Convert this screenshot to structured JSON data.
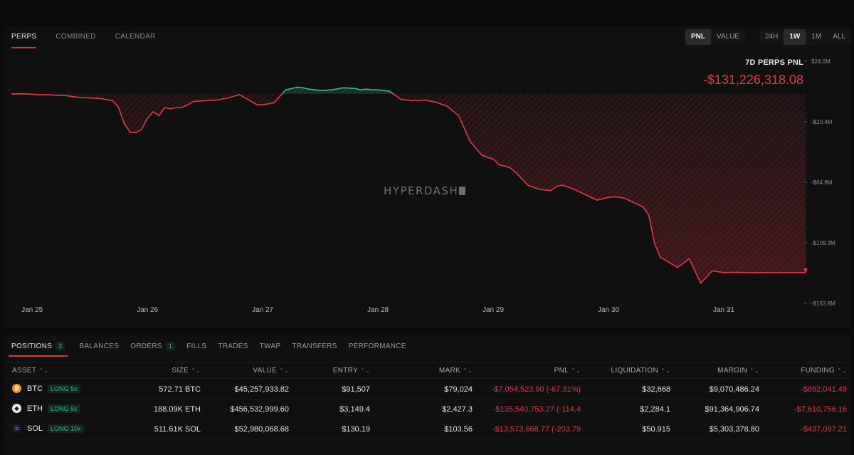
{
  "chart_tabs": [
    {
      "label": "PERPS",
      "active": true
    },
    {
      "label": "COMBINED",
      "active": false
    },
    {
      "label": "CALENDAR",
      "active": false
    }
  ],
  "metric_toggle": [
    {
      "label": "PNL",
      "active": true
    },
    {
      "label": "VALUE",
      "active": false
    }
  ],
  "range_toggle": [
    {
      "label": "24H",
      "active": false
    },
    {
      "label": "1W",
      "active": true
    },
    {
      "label": "1M",
      "active": false
    },
    {
      "label": "ALL",
      "active": false
    }
  ],
  "pnl_summary": {
    "label": "7D PERPS PNL",
    "value": "-$131,226,318.08"
  },
  "watermark": "HYPERDASH",
  "colors": {
    "positive": "#3fb98a",
    "negative": "#e0394a",
    "accent": "#d23a3a"
  },
  "chart_data": {
    "type": "area",
    "baseline": 0,
    "ylim": [
      -153.8,
      24.0
    ],
    "y_unit": "M USD",
    "y_ticks": [
      {
        "value": 24.0,
        "label": "$24.0M"
      },
      {
        "value": -20.4,
        "label": "-$20.4M"
      },
      {
        "value": -64.9,
        "label": "-$64.9M"
      },
      {
        "value": -109.3,
        "label": "-$109.3M"
      },
      {
        "value": -153.8,
        "label": "-$153.8M"
      }
    ],
    "x_ticks": [
      {
        "value": 0,
        "label": "Jan 25"
      },
      {
        "value": 1,
        "label": "Jan 26"
      },
      {
        "value": 2,
        "label": "Jan 27"
      },
      {
        "value": 3,
        "label": "Jan 28"
      },
      {
        "value": 4,
        "label": "Jan 29"
      },
      {
        "value": 5,
        "label": "Jan 30"
      },
      {
        "value": 6,
        "label": "Jan 31"
      }
    ],
    "xlim": [
      -0.18,
      6.71
    ],
    "series": [
      {
        "x": [
          -0.18,
          -0.05,
          0.05,
          0.15,
          0.3,
          0.4,
          0.5,
          0.6,
          0.7,
          0.75,
          0.8,
          0.85,
          0.9,
          0.95,
          1.0,
          1.05,
          1.1,
          1.15,
          1.2,
          1.25,
          1.3,
          1.35,
          1.4,
          1.5,
          1.6,
          1.7,
          1.8,
          1.9,
          1.95,
          2.0,
          2.1,
          2.2,
          2.3,
          2.35,
          2.4,
          2.5,
          2.6,
          2.7,
          2.8,
          2.85,
          2.9,
          2.95,
          3.0,
          3.1,
          3.2,
          3.3,
          3.4,
          3.5,
          3.6,
          3.7,
          3.8,
          3.9,
          4.0,
          4.05,
          4.1,
          4.15,
          4.2,
          4.3,
          4.4,
          4.5,
          4.55,
          4.6,
          4.7,
          4.8,
          4.9,
          4.95,
          5.0,
          5.05,
          5.1,
          5.15,
          5.2,
          5.3,
          5.35,
          5.4,
          5.45,
          5.5,
          5.6,
          5.7,
          5.8,
          5.9,
          6.0,
          6.1,
          6.2,
          6.3,
          6.35,
          6.4,
          6.45,
          6.5,
          6.55,
          6.6,
          6.64,
          6.67,
          6.69,
          6.71
        ],
        "y": [
          0.0,
          0.0,
          -0.5,
          -0.7,
          -1.3,
          -2.5,
          -3.0,
          -3.5,
          -5.0,
          -10,
          -22,
          -28,
          -28.5,
          -26,
          -18,
          -13,
          -16,
          -10,
          -11,
          -10,
          -10,
          -8,
          -5.5,
          -5.0,
          -4.5,
          -3.0,
          -0.5,
          -5.5,
          -8.0,
          -8.0,
          -6.5,
          3.0,
          5.0,
          4.5,
          3.5,
          2.5,
          3.0,
          4.5,
          4.0,
          3.0,
          3.5,
          3.0,
          3.0,
          2.0,
          -4.0,
          -5.0,
          -4.5,
          -6.0,
          -9.0,
          -16.0,
          -35.0,
          -45.0,
          -48.0,
          -52.0,
          -53.0,
          -54.5,
          -58.0,
          -67.0,
          -70.0,
          -71.0,
          -68.0,
          -67.0,
          -70.0,
          -74.0,
          -78.0,
          -77.0,
          -76.0,
          -75.5,
          -76.0,
          -77.0,
          -79.0,
          -83.0,
          -89.0,
          -110.0,
          -120.0,
          -122.5,
          -127.5,
          -121.0,
          -139.0,
          -130.0,
          -131.2,
          -131.0,
          -131.2,
          -131.2,
          -131.2,
          -131.2,
          -131.2,
          -131.2,
          -131.2,
          -131.2,
          -131.2,
          -131.2,
          -131.2,
          -131.2
        ]
      }
    ]
  },
  "position_tabs": [
    {
      "label": "POSITIONS",
      "badge": "3",
      "active": true
    },
    {
      "label": "BALANCES",
      "badge": "",
      "active": false
    },
    {
      "label": "ORDERS",
      "badge": "1",
      "active": false
    },
    {
      "label": "FILLS",
      "badge": "",
      "active": false
    },
    {
      "label": "TRADES",
      "badge": "",
      "active": false
    },
    {
      "label": "TWAP",
      "badge": "",
      "active": false
    },
    {
      "label": "TRANSFERS",
      "badge": "",
      "active": false
    },
    {
      "label": "PERFORMANCE",
      "badge": "",
      "active": false
    }
  ],
  "table": {
    "columns": [
      "ASSET",
      "SIZE",
      "VALUE",
      "ENTRY",
      "MARK",
      "PNL",
      "LIQUIDATION",
      "MARGIN",
      "FUNDING"
    ],
    "rows": [
      {
        "asset": "BTC",
        "icon": "bitcoin-icon",
        "glyph": "₿",
        "leverage": "LONG 5x",
        "size": "572.71 BTC",
        "value": "$45,257,933.82",
        "entry": "$91,507",
        "mark": "$79,024",
        "pnl": "-$7,054,523.90 (-67.31%)",
        "liquidation": "$32,668",
        "margin": "$9,070,486.24",
        "funding": "-$892,041.49"
      },
      {
        "asset": "ETH",
        "icon": "ethereum-icon",
        "glyph": "◆",
        "leverage": "LONG 5x",
        "size": "188.09K ETH",
        "value": "$456,532,999.60",
        "entry": "$3,149.4",
        "mark": "$2,427.3",
        "pnl": "-$135,540,753.27 (-114.4",
        "liquidation": "$2,284.1",
        "margin": "$91,364,906.74",
        "funding": "-$7,610,756.16"
      },
      {
        "asset": "SOL",
        "icon": "solana-icon",
        "glyph": "≡",
        "leverage": "LONG 10x",
        "size": "511.61K SOL",
        "value": "$52,980,068.68",
        "entry": "$130.19",
        "mark": "$103.56",
        "pnl": "-$13,573,668.77 (-203.79",
        "liquidation": "$50.915",
        "margin": "$5,303,378.80",
        "funding": "-$437,097.21"
      }
    ]
  }
}
